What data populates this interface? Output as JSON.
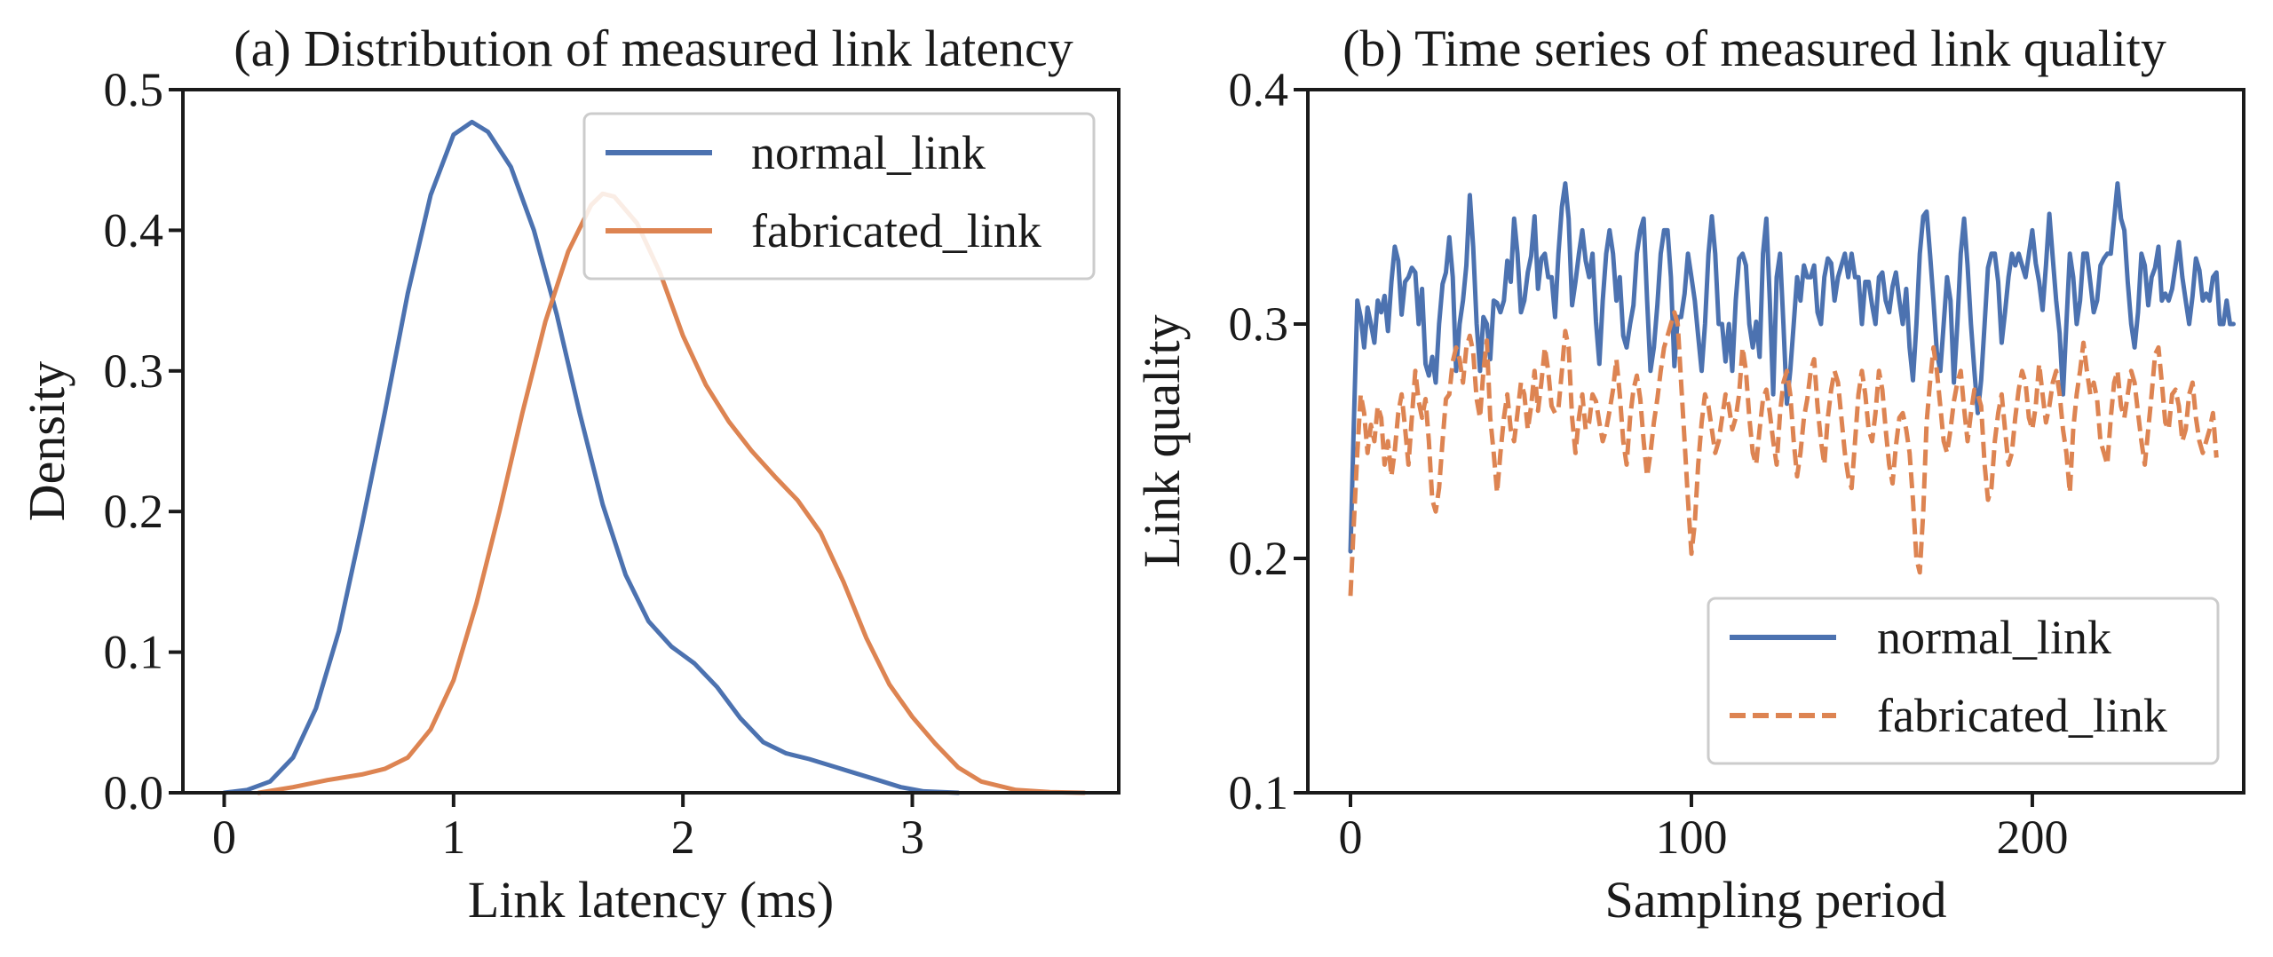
{
  "chart_data": [
    {
      "type": "line",
      "title": "(a) Distribution of measured link latency",
      "xlabel": "Link latency (ms)",
      "ylabel": "Density",
      "xlim": [
        -0.18,
        3.9
      ],
      "ylim": [
        0,
        0.5
      ],
      "xticks": [
        0,
        1,
        2,
        3
      ],
      "yticks": [
        0.0,
        0.1,
        0.2,
        0.3,
        0.4,
        0.5
      ],
      "xtick_labels": [
        "0",
        "1",
        "2",
        "3"
      ],
      "ytick_labels": [
        "0.0",
        "0.1",
        "0.2",
        "0.3",
        "0.4",
        "0.5"
      ],
      "legend_position": "upper-right",
      "grid": false,
      "series": [
        {
          "name": "normal_link",
          "color": "#4c72b0",
          "dash": "solid",
          "points": [
            [
              0,
              0
            ],
            [
              0.1,
              0.002
            ],
            [
              0.2,
              0.008
            ],
            [
              0.3,
              0.025
            ],
            [
              0.4,
              0.06
            ],
            [
              0.5,
              0.115
            ],
            [
              0.6,
              0.19
            ],
            [
              0.7,
              0.27
            ],
            [
              0.8,
              0.355
            ],
            [
              0.9,
              0.425
            ],
            [
              1.0,
              0.468
            ],
            [
              1.08,
              0.477
            ],
            [
              1.15,
              0.47
            ],
            [
              1.25,
              0.445
            ],
            [
              1.35,
              0.4
            ],
            [
              1.45,
              0.34
            ],
            [
              1.55,
              0.27
            ],
            [
              1.65,
              0.205
            ],
            [
              1.75,
              0.155
            ],
            [
              1.85,
              0.122
            ],
            [
              1.95,
              0.104
            ],
            [
              2.05,
              0.092
            ],
            [
              2.15,
              0.075
            ],
            [
              2.25,
              0.053
            ],
            [
              2.35,
              0.036
            ],
            [
              2.45,
              0.028
            ],
            [
              2.55,
              0.024
            ],
            [
              2.65,
              0.019
            ],
            [
              2.75,
              0.014
            ],
            [
              2.85,
              0.009
            ],
            [
              2.95,
              0.004
            ],
            [
              3.05,
              0.001
            ],
            [
              3.2,
              0
            ]
          ]
        },
        {
          "name": "fabricated_link",
          "color": "#dd8452",
          "dash": "solid",
          "points": [
            [
              0.15,
              0
            ],
            [
              0.3,
              0.004
            ],
            [
              0.45,
              0.009
            ],
            [
              0.6,
              0.013
            ],
            [
              0.7,
              0.017
            ],
            [
              0.8,
              0.025
            ],
            [
              0.9,
              0.045
            ],
            [
              1.0,
              0.08
            ],
            [
              1.1,
              0.135
            ],
            [
              1.2,
              0.2
            ],
            [
              1.3,
              0.27
            ],
            [
              1.4,
              0.335
            ],
            [
              1.5,
              0.385
            ],
            [
              1.6,
              0.418
            ],
            [
              1.65,
              0.426
            ],
            [
              1.7,
              0.424
            ],
            [
              1.8,
              0.405
            ],
            [
              1.9,
              0.37
            ],
            [
              2.0,
              0.325
            ],
            [
              2.1,
              0.29
            ],
            [
              2.2,
              0.264
            ],
            [
              2.3,
              0.243
            ],
            [
              2.4,
              0.225
            ],
            [
              2.5,
              0.208
            ],
            [
              2.6,
              0.185
            ],
            [
              2.7,
              0.15
            ],
            [
              2.8,
              0.11
            ],
            [
              2.9,
              0.077
            ],
            [
              3.0,
              0.054
            ],
            [
              3.1,
              0.035
            ],
            [
              3.2,
              0.018
            ],
            [
              3.3,
              0.008
            ],
            [
              3.45,
              0.002
            ],
            [
              3.6,
              0.0005
            ],
            [
              3.75,
              0
            ]
          ]
        }
      ]
    },
    {
      "type": "line",
      "title": "(b) Time series of measured link quality",
      "xlabel": "Sampling period",
      "ylabel": "Link quality",
      "xlim": [
        -12.5,
        262
      ],
      "ylim": [
        0.1,
        0.4
      ],
      "xticks": [
        0,
        100,
        200
      ],
      "yticks": [
        0.1,
        0.2,
        0.3,
        0.4
      ],
      "xtick_labels": [
        "0",
        "100",
        "200"
      ],
      "ytick_labels": [
        "0.1",
        "0.2",
        "0.3",
        "0.4"
      ],
      "legend_position": "lower-right",
      "grid": false,
      "series": [
        {
          "name": "normal_link",
          "color": "#4c72b0",
          "dash": "solid",
          "x_start": 0,
          "x_step": 1,
          "values": [
            0.203,
            0.258,
            0.31,
            0.303,
            0.29,
            0.307,
            0.3,
            0.292,
            0.31,
            0.305,
            0.312,
            0.297,
            0.318,
            0.333,
            0.327,
            0.304,
            0.318,
            0.32,
            0.324,
            0.322,
            0.3,
            0.315,
            0.283,
            0.278,
            0.286,
            0.275,
            0.3,
            0.317,
            0.322,
            0.337,
            0.32,
            0.28,
            0.3,
            0.31,
            0.325,
            0.355,
            0.333,
            0.3,
            0.28,
            0.303,
            0.3,
            0.285,
            0.31,
            0.309,
            0.305,
            0.31,
            0.327,
            0.318,
            0.345,
            0.33,
            0.305,
            0.31,
            0.322,
            0.329,
            0.346,
            0.315,
            0.328,
            0.33,
            0.32,
            0.32,
            0.303,
            0.33,
            0.35,
            0.36,
            0.345,
            0.308,
            0.318,
            0.33,
            0.34,
            0.327,
            0.32,
            0.33,
            0.301,
            0.283,
            0.31,
            0.33,
            0.34,
            0.33,
            0.31,
            0.32,
            0.295,
            0.29,
            0.3,
            0.308,
            0.33,
            0.34,
            0.345,
            0.31,
            0.28,
            0.29,
            0.308,
            0.33,
            0.34,
            0.34,
            0.32,
            0.282,
            0.303,
            0.303,
            0.313,
            0.33,
            0.32,
            0.31,
            0.295,
            0.28,
            0.3,
            0.33,
            0.346,
            0.33,
            0.3,
            0.3,
            0.284,
            0.3,
            0.28,
            0.31,
            0.328,
            0.33,
            0.325,
            0.3,
            0.29,
            0.301,
            0.286,
            0.33,
            0.345,
            0.31,
            0.27,
            0.32,
            0.33,
            0.3,
            0.266,
            0.28,
            0.3,
            0.32,
            0.31,
            0.325,
            0.32,
            0.32,
            0.325,
            0.305,
            0.3,
            0.32,
            0.328,
            0.326,
            0.31,
            0.32,
            0.325,
            0.33,
            0.32,
            0.33,
            0.32,
            0.32,
            0.3,
            0.318,
            0.318,
            0.308,
            0.3,
            0.32,
            0.322,
            0.31,
            0.305,
            0.316,
            0.322,
            0.31,
            0.3,
            0.315,
            0.29,
            0.276,
            0.3,
            0.33,
            0.346,
            0.348,
            0.33,
            0.31,
            0.288,
            0.28,
            0.3,
            0.32,
            0.31,
            0.275,
            0.3,
            0.33,
            0.345,
            0.325,
            0.3,
            0.28,
            0.262,
            0.276,
            0.3,
            0.324,
            0.33,
            0.33,
            0.318,
            0.292,
            0.305,
            0.32,
            0.33,
            0.325,
            0.33,
            0.325,
            0.32,
            0.33,
            0.34,
            0.326,
            0.318,
            0.306,
            0.325,
            0.347,
            0.328,
            0.31,
            0.296,
            0.27,
            0.3,
            0.33,
            0.32,
            0.3,
            0.31,
            0.33,
            0.33,
            0.318,
            0.305,
            0.31,
            0.325,
            0.328,
            0.33,
            0.33,
            0.345,
            0.36,
            0.345,
            0.34,
            0.318,
            0.3,
            0.29,
            0.305,
            0.33,
            0.325,
            0.308,
            0.32,
            0.324,
            0.333,
            0.31,
            0.313,
            0.31,
            0.315,
            0.325,
            0.335,
            0.32,
            0.31,
            0.3,
            0.312,
            0.328,
            0.323,
            0.31,
            0.313,
            0.31,
            0.32,
            0.322,
            0.3,
            0.3,
            0.31,
            0.3,
            0.3
          ]
        },
        {
          "name": "fabricated_link",
          "color": "#dd8452",
          "dash": "dashed",
          "x_start": 0,
          "x_step": 1,
          "values": [
            0.184,
            0.215,
            0.245,
            0.27,
            0.262,
            0.245,
            0.257,
            0.25,
            0.265,
            0.26,
            0.24,
            0.25,
            0.235,
            0.246,
            0.262,
            0.27,
            0.256,
            0.24,
            0.26,
            0.28,
            0.267,
            0.26,
            0.268,
            0.25,
            0.225,
            0.22,
            0.23,
            0.25,
            0.268,
            0.27,
            0.284,
            0.29,
            0.285,
            0.275,
            0.29,
            0.295,
            0.288,
            0.268,
            0.26,
            0.28,
            0.293,
            0.26,
            0.245,
            0.228,
            0.245,
            0.26,
            0.27,
            0.255,
            0.25,
            0.262,
            0.275,
            0.27,
            0.255,
            0.265,
            0.28,
            0.263,
            0.275,
            0.29,
            0.28,
            0.265,
            0.262,
            0.264,
            0.28,
            0.297,
            0.29,
            0.26,
            0.245,
            0.26,
            0.27,
            0.255,
            0.258,
            0.27,
            0.267,
            0.258,
            0.25,
            0.255,
            0.263,
            0.272,
            0.285,
            0.27,
            0.25,
            0.24,
            0.26,
            0.272,
            0.278,
            0.268,
            0.25,
            0.235,
            0.245,
            0.258,
            0.268,
            0.28,
            0.29,
            0.295,
            0.3,
            0.305,
            0.3,
            0.275,
            0.25,
            0.225,
            0.202,
            0.215,
            0.24,
            0.258,
            0.27,
            0.265,
            0.255,
            0.245,
            0.25,
            0.26,
            0.27,
            0.265,
            0.255,
            0.26,
            0.27,
            0.29,
            0.28,
            0.26,
            0.245,
            0.24,
            0.255,
            0.268,
            0.272,
            0.262,
            0.25,
            0.24,
            0.262,
            0.275,
            0.28,
            0.27,
            0.25,
            0.235,
            0.245,
            0.26,
            0.268,
            0.28,
            0.285,
            0.265,
            0.25,
            0.24,
            0.26,
            0.272,
            0.28,
            0.275,
            0.26,
            0.245,
            0.235,
            0.23,
            0.25,
            0.27,
            0.28,
            0.27,
            0.255,
            0.25,
            0.262,
            0.28,
            0.272,
            0.255,
            0.24,
            0.232,
            0.248,
            0.26,
            0.262,
            0.255,
            0.245,
            0.225,
            0.2,
            0.194,
            0.22,
            0.258,
            0.275,
            0.29,
            0.28,
            0.265,
            0.25,
            0.245,
            0.255,
            0.267,
            0.275,
            0.28,
            0.264,
            0.25,
            0.262,
            0.272,
            0.27,
            0.265,
            0.24,
            0.225,
            0.23,
            0.25,
            0.262,
            0.27,
            0.255,
            0.24,
            0.245,
            0.26,
            0.272,
            0.28,
            0.275,
            0.26,
            0.255,
            0.265,
            0.283,
            0.27,
            0.258,
            0.265,
            0.275,
            0.28,
            0.27,
            0.255,
            0.245,
            0.228,
            0.255,
            0.27,
            0.28,
            0.292,
            0.28,
            0.27,
            0.275,
            0.268,
            0.25,
            0.245,
            0.24,
            0.26,
            0.275,
            0.28,
            0.265,
            0.26,
            0.27,
            0.28,
            0.275,
            0.262,
            0.25,
            0.24,
            0.255,
            0.27,
            0.287,
            0.29,
            0.275,
            0.258,
            0.255,
            0.27,
            0.272,
            0.265,
            0.25,
            0.255,
            0.27,
            0.275,
            0.26,
            0.25,
            0.245,
            0.25,
            0.255,
            0.262,
            0.243
          ]
        }
      ]
    }
  ]
}
